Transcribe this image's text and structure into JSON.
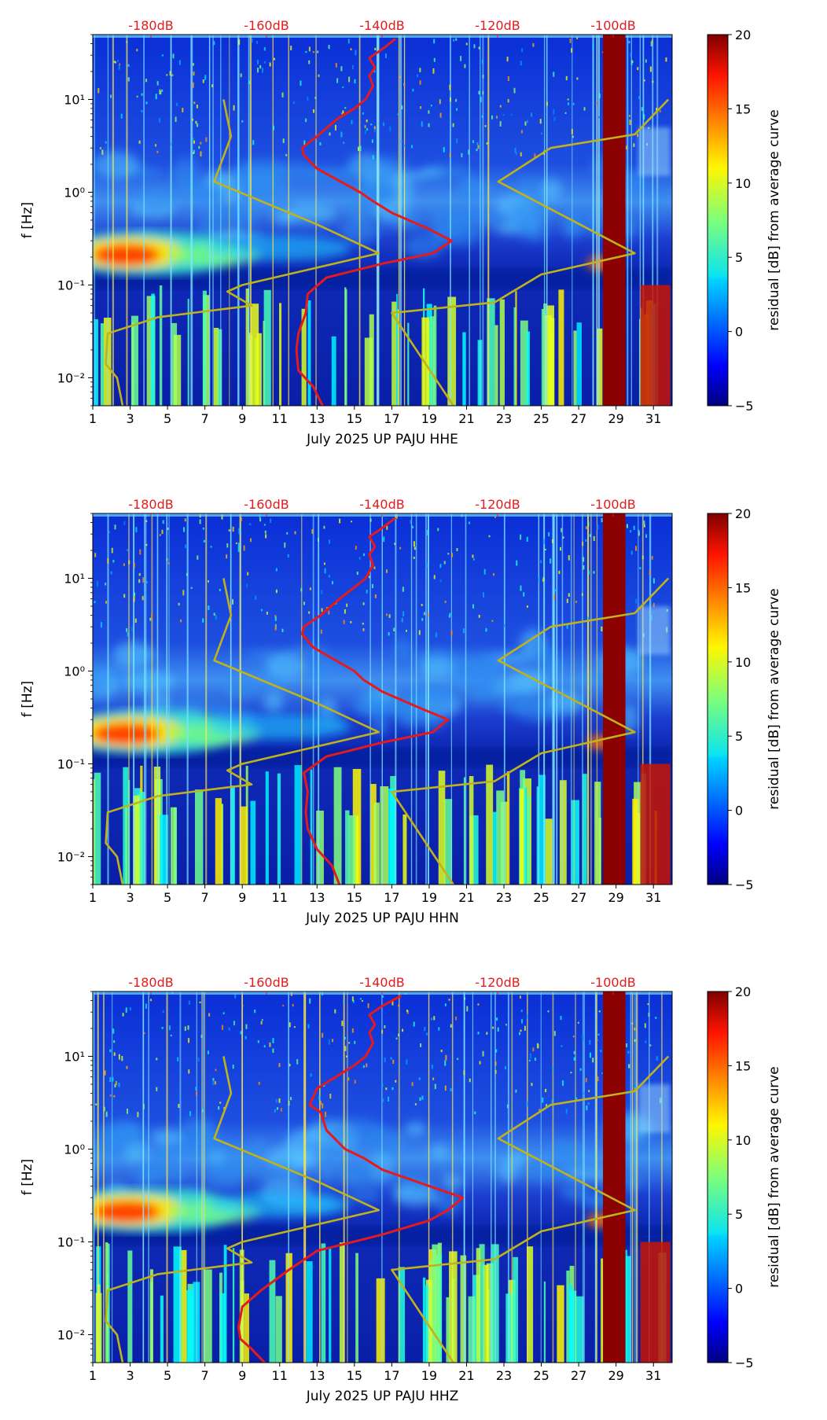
{
  "colors": {
    "ref_curve": "#e41a1c",
    "model_curve": "#bfb21c",
    "top_axis_text": "#e41a1c",
    "saturated_band": "#8b0000"
  },
  "colorbar": {
    "label": "residual [dB] from average curve",
    "ticks": [
      "20",
      "15",
      "10",
      "5",
      "0",
      "−5"
    ],
    "range": [
      -5,
      20
    ],
    "colormap": "jet"
  },
  "chart_data": [
    {
      "type": "heatmap",
      "title": "",
      "xlabel": "July 2025 UP PAJU  HHE",
      "ylabel": "f [Hz]",
      "x_ticks": [
        "1",
        "3",
        "5",
        "7",
        "9",
        "11",
        "13",
        "15",
        "17",
        "19",
        "21",
        "23",
        "25",
        "27",
        "29",
        "31"
      ],
      "xlim": [
        1,
        32
      ],
      "y_ticks": [
        "10¹",
        "10⁰",
        "10⁻¹",
        "10⁻²"
      ],
      "ylim": [
        0.005,
        50
      ],
      "top_ticks": [
        "-180dB",
        "-160dB",
        "-140dB",
        "-120dB",
        "-100dB"
      ],
      "series": [
        {
          "name": "red_curve",
          "points": [
            [
              13.3,
              0.005
            ],
            [
              12.8,
              0.008
            ],
            [
              12.0,
              0.012
            ],
            [
              11.9,
              0.02
            ],
            [
              12.0,
              0.03
            ],
            [
              12.4,
              0.05
            ],
            [
              12.5,
              0.08
            ],
            [
              13.5,
              0.12
            ],
            [
              16.5,
              0.17
            ],
            [
              19.2,
              0.22
            ],
            [
              20.2,
              0.3
            ],
            [
              19.0,
              0.4
            ],
            [
              17.0,
              0.6
            ],
            [
              16.0,
              0.8
            ],
            [
              15.3,
              1.0
            ],
            [
              13.0,
              1.8
            ],
            [
              12.3,
              2.5
            ],
            [
              12.2,
              3.0
            ],
            [
              13.0,
              4.0
            ],
            [
              14.0,
              6.0
            ],
            [
              15.0,
              8.0
            ],
            [
              15.6,
              10.0
            ],
            [
              16.0,
              14.0
            ],
            [
              15.8,
              18.0
            ],
            [
              16.1,
              22.0
            ],
            [
              15.8,
              28.0
            ],
            [
              16.5,
              35.0
            ],
            [
              17.2,
              45.0
            ]
          ]
        },
        {
          "name": "olive_curve_left",
          "points": [
            [
              2.6,
              0.005
            ],
            [
              2.3,
              0.01
            ],
            [
              1.7,
              0.014
            ],
            [
              1.8,
              0.03
            ],
            [
              4.5,
              0.045
            ],
            [
              9.5,
              0.06
            ],
            [
              8.2,
              0.085
            ],
            [
              9.0,
              0.1
            ],
            [
              16.3,
              0.22
            ],
            [
              13.0,
              0.45
            ],
            [
              7.5,
              1.3
            ],
            [
              8.4,
              4.0
            ],
            [
              8.0,
              10.0
            ]
          ]
        },
        {
          "name": "olive_curve_right",
          "points": [
            [
              20.3,
              0.005
            ],
            [
              17.0,
              0.05
            ],
            [
              22.5,
              0.065
            ],
            [
              25.0,
              0.13
            ],
            [
              30.0,
              0.22
            ],
            [
              22.7,
              1.3
            ],
            [
              25.5,
              3.0
            ],
            [
              30.0,
              4.2
            ],
            [
              31.8,
              10.0
            ]
          ]
        }
      ]
    },
    {
      "type": "heatmap",
      "title": "",
      "xlabel": "July 2025 UP PAJU  HHN",
      "ylabel": "f [Hz]",
      "x_ticks": [
        "1",
        "3",
        "5",
        "7",
        "9",
        "11",
        "13",
        "15",
        "17",
        "19",
        "21",
        "23",
        "25",
        "27",
        "29",
        "31"
      ],
      "xlim": [
        1,
        32
      ],
      "y_ticks": [
        "10¹",
        "10⁰",
        "10⁻¹",
        "10⁻²"
      ],
      "ylim": [
        0.005,
        50
      ],
      "top_ticks": [
        "-180dB",
        "-160dB",
        "-140dB",
        "-120dB",
        "-100dB"
      ],
      "series": [
        {
          "name": "red_curve",
          "points": [
            [
              14.2,
              0.005
            ],
            [
              13.8,
              0.008
            ],
            [
              13.0,
              0.012
            ],
            [
              12.5,
              0.02
            ],
            [
              12.4,
              0.03
            ],
            [
              12.5,
              0.05
            ],
            [
              12.3,
              0.08
            ],
            [
              13.5,
              0.12
            ],
            [
              16.5,
              0.17
            ],
            [
              19.2,
              0.22
            ],
            [
              20.0,
              0.3
            ],
            [
              18.5,
              0.4
            ],
            [
              16.5,
              0.6
            ],
            [
              15.5,
              0.8
            ],
            [
              15.0,
              1.0
            ],
            [
              12.8,
              1.8
            ],
            [
              12.2,
              2.5
            ],
            [
              12.3,
              3.0
            ],
            [
              13.2,
              4.0
            ],
            [
              14.2,
              6.0
            ],
            [
              15.0,
              8.0
            ],
            [
              15.6,
              10.0
            ],
            [
              16.0,
              14.0
            ],
            [
              15.8,
              18.0
            ],
            [
              16.1,
              22.0
            ],
            [
              15.8,
              28.0
            ],
            [
              16.5,
              35.0
            ],
            [
              17.2,
              45.0
            ]
          ]
        },
        {
          "name": "olive_curve_left",
          "points": [
            [
              2.6,
              0.005
            ],
            [
              2.3,
              0.01
            ],
            [
              1.7,
              0.014
            ],
            [
              1.8,
              0.03
            ],
            [
              4.5,
              0.045
            ],
            [
              9.5,
              0.06
            ],
            [
              8.2,
              0.085
            ],
            [
              9.0,
              0.1
            ],
            [
              16.3,
              0.22
            ],
            [
              13.0,
              0.45
            ],
            [
              7.5,
              1.3
            ],
            [
              8.4,
              4.0
            ],
            [
              8.0,
              10.0
            ]
          ]
        },
        {
          "name": "olive_curve_right",
          "points": [
            [
              20.3,
              0.005
            ],
            [
              17.0,
              0.05
            ],
            [
              22.5,
              0.065
            ],
            [
              25.0,
              0.13
            ],
            [
              30.0,
              0.22
            ],
            [
              22.7,
              1.3
            ],
            [
              25.5,
              3.0
            ],
            [
              30.0,
              4.2
            ],
            [
              31.8,
              10.0
            ]
          ]
        }
      ]
    },
    {
      "type": "heatmap",
      "title": "",
      "xlabel": "July 2025 UP PAJU  HHZ",
      "ylabel": "f [Hz]",
      "x_ticks": [
        "1",
        "3",
        "5",
        "7",
        "9",
        "11",
        "13",
        "15",
        "17",
        "19",
        "21",
        "23",
        "25",
        "27",
        "29",
        "31"
      ],
      "xlim": [
        1,
        32
      ],
      "y_ticks": [
        "10¹",
        "10⁰",
        "10⁻¹",
        "10⁻²"
      ],
      "ylim": [
        0.005,
        50
      ],
      "top_ticks": [
        "-180dB",
        "-160dB",
        "-140dB",
        "-120dB",
        "-100dB"
      ],
      "series": [
        {
          "name": "red_curve",
          "points": [
            [
              10.2,
              0.005
            ],
            [
              9.5,
              0.007
            ],
            [
              8.9,
              0.009
            ],
            [
              8.8,
              0.012
            ],
            [
              9.0,
              0.02
            ],
            [
              10.0,
              0.03
            ],
            [
              11.5,
              0.05
            ],
            [
              13.0,
              0.08
            ],
            [
              16.5,
              0.12
            ],
            [
              19.0,
              0.17
            ],
            [
              20.0,
              0.22
            ],
            [
              20.8,
              0.3
            ],
            [
              19.0,
              0.4
            ],
            [
              16.5,
              0.6
            ],
            [
              15.5,
              0.8
            ],
            [
              14.5,
              1.0
            ],
            [
              13.5,
              1.6
            ],
            [
              13.2,
              2.5
            ],
            [
              12.6,
              3.0
            ],
            [
              13.0,
              4.5
            ],
            [
              14.0,
              6.0
            ],
            [
              15.0,
              8.0
            ],
            [
              15.6,
              10.0
            ],
            [
              16.0,
              14.0
            ],
            [
              15.8,
              18.0
            ],
            [
              16.1,
              22.0
            ],
            [
              15.8,
              28.0
            ],
            [
              16.5,
              35.0
            ],
            [
              17.5,
              45.0
            ]
          ]
        },
        {
          "name": "olive_curve_left",
          "points": [
            [
              2.6,
              0.005
            ],
            [
              2.3,
              0.01
            ],
            [
              1.7,
              0.014
            ],
            [
              1.8,
              0.03
            ],
            [
              4.5,
              0.045
            ],
            [
              9.5,
              0.06
            ],
            [
              8.2,
              0.085
            ],
            [
              9.0,
              0.1
            ],
            [
              16.3,
              0.22
            ],
            [
              13.0,
              0.45
            ],
            [
              7.5,
              1.3
            ],
            [
              8.4,
              4.0
            ],
            [
              8.0,
              10.0
            ]
          ]
        },
        {
          "name": "olive_curve_right",
          "points": [
            [
              20.3,
              0.005
            ],
            [
              17.0,
              0.05
            ],
            [
              22.5,
              0.065
            ],
            [
              25.0,
              0.13
            ],
            [
              30.0,
              0.22
            ],
            [
              22.7,
              1.3
            ],
            [
              25.5,
              3.0
            ],
            [
              30.0,
              4.2
            ],
            [
              31.8,
              10.0
            ]
          ]
        }
      ]
    }
  ]
}
